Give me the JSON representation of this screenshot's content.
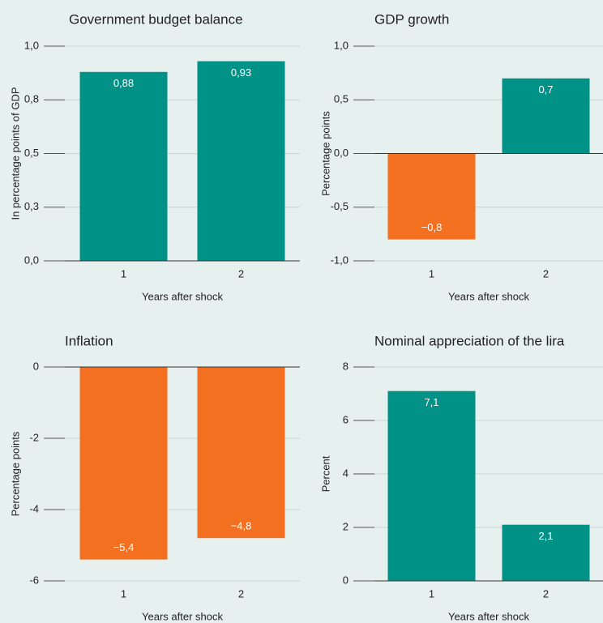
{
  "chart_data": [
    {
      "type": "bar",
      "title": "Government budget balance",
      "ylabel": "In percentage points of GDP",
      "xlabel": "Years after shock",
      "categories": [
        "1",
        "2"
      ],
      "values": [
        0.88,
        0.93
      ],
      "value_labels": [
        "0,88",
        "0,93"
      ],
      "colors": [
        "#009286",
        "#009286"
      ],
      "ylim": [
        0,
        1.0
      ],
      "yticks": [
        {
          "value": 0,
          "label": "0,0"
        },
        {
          "value": 0.25,
          "label": "0,3"
        },
        {
          "value": 0.5,
          "label": "0,5"
        },
        {
          "value": 0.75,
          "label": "0,8"
        },
        {
          "value": 1.0,
          "label": "1,0"
        }
      ],
      "grid": true
    },
    {
      "type": "bar",
      "title": "GDP growth",
      "ylabel": "Percentage points",
      "xlabel": "Years after shock",
      "categories": [
        "1",
        "2"
      ],
      "values": [
        -0.8,
        0.7
      ],
      "value_labels": [
        "−0,8",
        "0,7"
      ],
      "colors": [
        "#f37021",
        "#009286"
      ],
      "ylim": [
        -1.0,
        1.0
      ],
      "yticks": [
        {
          "value": -1.0,
          "label": "-1,0"
        },
        {
          "value": -0.5,
          "label": "-0,5"
        },
        {
          "value": 0,
          "label": "0,0"
        },
        {
          "value": 0.5,
          "label": "0,5"
        },
        {
          "value": 1.0,
          "label": "1,0"
        }
      ],
      "grid": true
    },
    {
      "type": "bar",
      "title": "Inflation",
      "ylabel": "Percentage points",
      "xlabel": "Years after shock",
      "categories": [
        "1",
        "2"
      ],
      "values": [
        -5.4,
        -4.8
      ],
      "value_labels": [
        "−5,4",
        "−4,8"
      ],
      "colors": [
        "#f37021",
        "#f37021"
      ],
      "ylim": [
        -6,
        0
      ],
      "yticks": [
        0,
        -2,
        -4,
        -6
      ],
      "grid": true
    },
    {
      "type": "bar",
      "title": "Nominal appreciation of the lira",
      "ylabel": "Percent",
      "xlabel": "Years after shock",
      "categories": [
        "1",
        "2"
      ],
      "values": [
        7.1,
        2.1
      ],
      "value_labels": [
        "7,1",
        "2,1"
      ],
      "colors": [
        "#009286",
        "#009286"
      ],
      "ylim": [
        0,
        8
      ],
      "yticks": [
        0,
        2,
        4,
        6,
        8
      ],
      "grid": true
    }
  ]
}
